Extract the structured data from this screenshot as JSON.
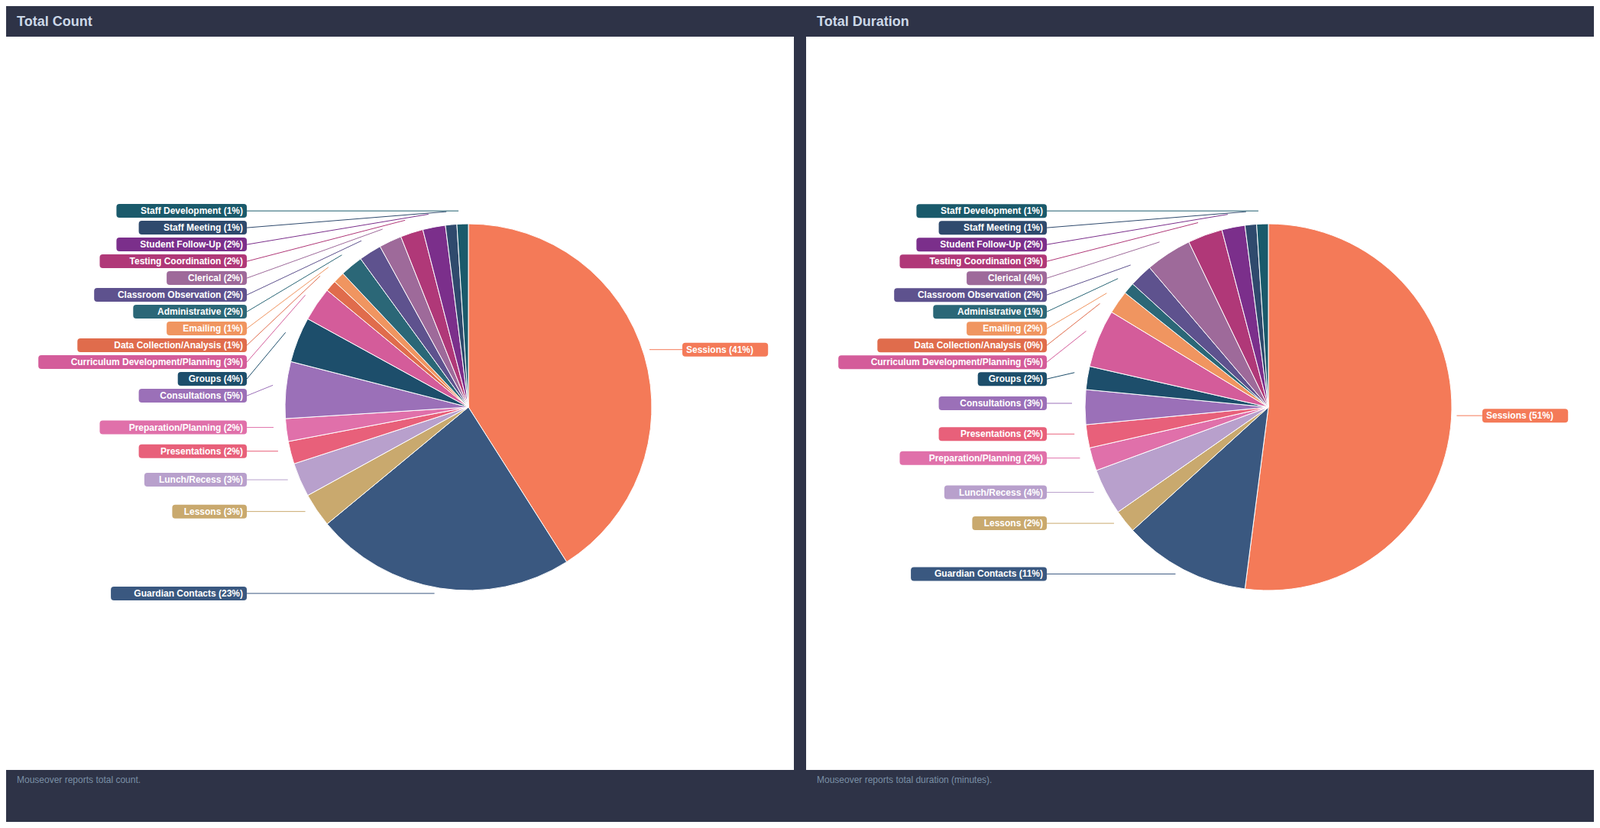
{
  "chart_data": [
    {
      "type": "pie",
      "title": "Total Count",
      "categories": [
        "Sessions",
        "Guardian Contacts",
        "Lessons",
        "Lunch/Recess",
        "Presentations",
        "Preparation/Planning",
        "Consultations",
        "Groups",
        "Curriculum Development/Planning",
        "Data Collection/Analysis",
        "Emailing",
        "Administrative",
        "Classroom Observation",
        "Clerical",
        "Testing Coordination",
        "Student Follow-Up",
        "Staff Meeting",
        "Staff Development"
      ],
      "values": [
        41,
        23,
        3,
        3,
        2,
        2,
        5,
        4,
        3,
        1,
        1,
        2,
        2,
        2,
        2,
        2,
        1,
        1
      ],
      "colors": [
        "#f47a58",
        "#3a5880",
        "#c9a96e",
        "#b8a0cc",
        "#e8607a",
        "#e070aa",
        "#9b70b8",
        "#1d4e6b",
        "#d45c9a",
        "#e06c4c",
        "#f09560",
        "#2b6777",
        "#5e528e",
        "#9e6a9a",
        "#b03878",
        "#7b2f8b",
        "#2f4a6d",
        "#1a5a6b"
      ],
      "data_labels": true,
      "value_labels": [
        "Sessions (41%)",
        "Guardian Contacts (23%)",
        "Lessons (3%)",
        "Lunch/Recess (3%)",
        "Presentations (2%)",
        "Preparation/Planning (2%)",
        "Consultations (5%)",
        "Groups (4%)",
        "Curriculum Development/Planning (3%)",
        "Data Collection/Analysis (1%)",
        "Emailing (1%)",
        "Administrative (2%)",
        "Classroom Observation (2%)",
        "Clerical (2%)",
        "Testing Coordination (2%)",
        "Student Follow-Up (2%)",
        "Staff Meeting (1%)",
        "Staff Development (1%)"
      ],
      "annotations": [
        "Mouseover reports total count."
      ]
    },
    {
      "type": "pie",
      "title": "Total Duration",
      "categories": [
        "Sessions",
        "Guardian Contacts",
        "Lessons",
        "Lunch/Recess",
        "Preparation/Planning",
        "Presentations",
        "Consultations",
        "Groups",
        "Curriculum Development/Planning",
        "Data Collection/Analysis",
        "Emailing",
        "Administrative",
        "Classroom Observation",
        "Clerical",
        "Testing Coordination",
        "Student Follow-Up",
        "Staff Meeting",
        "Staff Development"
      ],
      "values": [
        51,
        11,
        2,
        4,
        2,
        2,
        3,
        2,
        5,
        0,
        2,
        1,
        2,
        4,
        3,
        2,
        1,
        1
      ],
      "colors": [
        "#f47a58",
        "#3a5880",
        "#c9a96e",
        "#b8a0cc",
        "#e070aa",
        "#e8607a",
        "#9b70b8",
        "#1d4e6b",
        "#d45c9a",
        "#e06c4c",
        "#f09560",
        "#2b6777",
        "#5e528e",
        "#9e6a9a",
        "#b03878",
        "#7b2f8b",
        "#2f4a6d",
        "#1a5a6b"
      ],
      "data_labels": true,
      "value_labels": [
        "Sessions (51%)",
        "Guardian Contacts (11%)",
        "Lessons (2%)",
        "Lunch/Recess (4%)",
        "Preparation/Planning (2%)",
        "Presentations (2%)",
        "Consultations (3%)",
        "Groups (2%)",
        "Curriculum Development/Planning (5%)",
        "Data Collection/Analysis (0%)",
        "Emailing (2%)",
        "Administrative (1%)",
        "Classroom Observation (2%)",
        "Clerical (4%)",
        "Testing Coordination (3%)",
        "Student Follow-Up (2%)",
        "Staff Meeting (1%)",
        "Staff Development (1%)"
      ],
      "annotations": [
        "Mouseover reports total duration (minutes)."
      ]
    }
  ]
}
